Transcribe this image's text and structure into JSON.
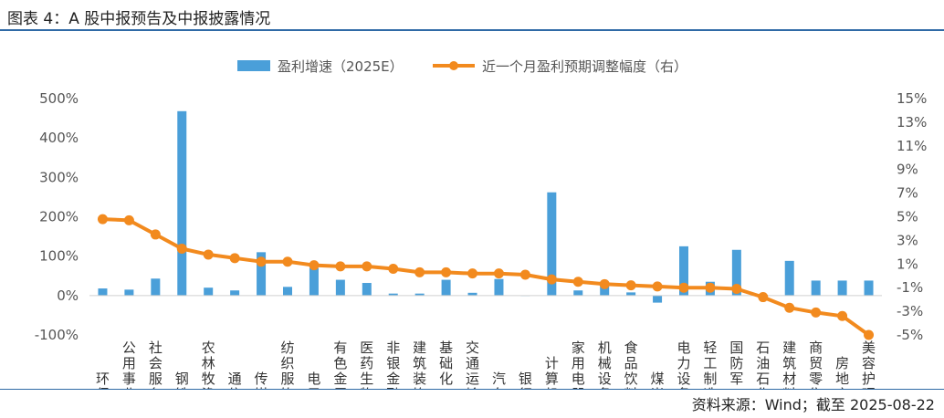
{
  "header": {
    "title": "图表 4：A 股中报预告及中报披露情况"
  },
  "footer": {
    "source": "资料来源：Wind；截至 2025-08-22"
  },
  "colors": {
    "bar": "#4a9fd9",
    "line": "#f28a1e",
    "rule": "#2f6aa6"
  },
  "chart_data": {
    "type": "bar",
    "legend_position": "top",
    "legend": [
      "盈利增速（2025E）",
      "近一个月盈利预期调整幅度（右）"
    ],
    "categories": [
      "环保",
      "公用事业",
      "社会服务",
      "钢铁",
      "农林牧渔",
      "通信",
      "传媒",
      "纺织服饰",
      "电子",
      "有色金属",
      "医药生物",
      "非银金融",
      "建筑装饰",
      "基础化工",
      "交通运输",
      "汽车",
      "银行",
      "计算机",
      "家用电器",
      "机械设备",
      "食品饮料",
      "煤炭",
      "电力设备",
      "轻工制造",
      "国防军工",
      "石油石化",
      "建筑材料",
      "商贸零售",
      "房地产",
      "美容护理"
    ],
    "series": [
      {
        "name": "盈利增速（2025E）",
        "type": "bar",
        "axis": "left",
        "values": [
          18,
          15,
          43,
          468,
          20,
          13,
          110,
          22,
          70,
          40,
          32,
          5,
          5,
          40,
          7,
          42,
          0,
          262,
          13,
          30,
          8,
          -18,
          125,
          35,
          116,
          0,
          88,
          38,
          38,
          38
        ]
      },
      {
        "name": "近一个月盈利预期调整幅度（右）",
        "type": "line",
        "axis": "right",
        "values": [
          4.8,
          4.7,
          3.5,
          2.3,
          1.8,
          1.5,
          1.2,
          1.2,
          0.9,
          0.8,
          0.8,
          0.6,
          0.3,
          0.3,
          0.2,
          0.2,
          0.1,
          -0.3,
          -0.5,
          -0.7,
          -0.8,
          -0.9,
          -1.0,
          -1.0,
          -1.1,
          -1.8,
          -2.7,
          -3.1,
          -3.4,
          -5.0
        ]
      }
    ],
    "left_axis": {
      "ylim": [
        -100,
        500
      ],
      "ticks": [
        -100,
        0,
        100,
        200,
        300,
        400,
        500
      ],
      "tick_labels": [
        "-100%",
        "0%",
        "100%",
        "200%",
        "300%",
        "400%",
        "500%"
      ]
    },
    "right_axis": {
      "ylim": [
        -5,
        15
      ],
      "ticks": [
        -5,
        -3,
        -1,
        1,
        3,
        5,
        7,
        9,
        11,
        13,
        15
      ],
      "tick_labels": [
        "-5%",
        "-3%",
        "-1%",
        "1%",
        "3%",
        "5%",
        "7%",
        "9%",
        "11%",
        "13%",
        "15%"
      ]
    },
    "grid": false
  }
}
